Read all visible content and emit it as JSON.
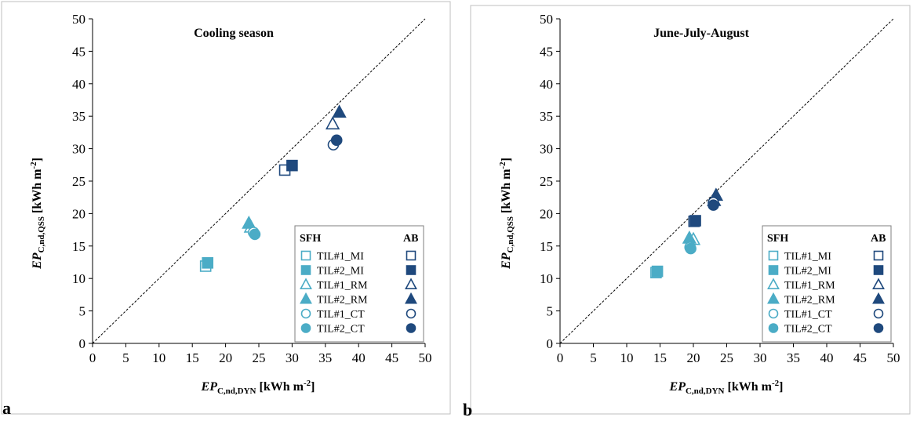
{
  "chart_data": [
    {
      "panel_label": "a",
      "type": "scatter",
      "title": "Cooling season",
      "xlabel": {
        "main": "EP",
        "sub": "C,nd,DYN",
        "unit": " [kWh m",
        "exp": "-2",
        "close": "]"
      },
      "ylabel": {
        "main": "EP",
        "sub": "C,nd,QSS",
        "unit": " [kWh m",
        "exp": "-2",
        "close": "]"
      },
      "xlim": [
        0,
        50
      ],
      "ylim": [
        0,
        50
      ],
      "xticks": [
        "0",
        "5",
        "10",
        "15",
        "20",
        "25",
        "30",
        "35",
        "40",
        "45",
        "50"
      ],
      "yticks": [
        "0",
        "5",
        "10",
        "15",
        "20",
        "25",
        "30",
        "35",
        "40",
        "45",
        "50"
      ],
      "grid": false,
      "reference_line": "y = x (dashed)",
      "legend_position": "bottom-right",
      "legend_headers": [
        "SFH",
        "AB"
      ],
      "series": [
        {
          "name": "TIL#1_MI",
          "group": "SFH",
          "marker": "square",
          "filled": false,
          "color": "#4BACC6",
          "x": 17.0,
          "y": 11.9
        },
        {
          "name": "TIL#2_MI",
          "group": "SFH",
          "marker": "square",
          "filled": true,
          "color": "#4BACC6",
          "x": 17.3,
          "y": 12.4
        },
        {
          "name": "TIL#1_RM",
          "group": "SFH",
          "marker": "triangle",
          "filled": false,
          "color": "#4BACC6",
          "x": 23.8,
          "y": 17.9
        },
        {
          "name": "TIL#2_RM",
          "group": "SFH",
          "marker": "triangle",
          "filled": true,
          "color": "#4BACC6",
          "x": 23.5,
          "y": 18.5
        },
        {
          "name": "TIL#1_CT",
          "group": "SFH",
          "marker": "circle",
          "filled": false,
          "color": "#4BACC6",
          "x": 24.2,
          "y": 17.1
        },
        {
          "name": "TIL#2_CT",
          "group": "SFH",
          "marker": "circle",
          "filled": true,
          "color": "#4BACC6",
          "x": 24.4,
          "y": 16.8
        },
        {
          "name": "TIL#1_MI",
          "group": "AB",
          "marker": "square",
          "filled": false,
          "color": "#1F497D",
          "x": 28.9,
          "y": 26.7
        },
        {
          "name": "TIL#2_MI",
          "group": "AB",
          "marker": "square",
          "filled": true,
          "color": "#1F497D",
          "x": 30.0,
          "y": 27.4
        },
        {
          "name": "TIL#1_RM",
          "group": "AB",
          "marker": "triangle",
          "filled": false,
          "color": "#1F497D",
          "x": 36.1,
          "y": 33.8
        },
        {
          "name": "TIL#2_RM",
          "group": "AB",
          "marker": "triangle",
          "filled": true,
          "color": "#1F497D",
          "x": 37.1,
          "y": 35.6
        },
        {
          "name": "TIL#1_CT",
          "group": "AB",
          "marker": "circle",
          "filled": false,
          "color": "#1F497D",
          "x": 36.2,
          "y": 30.6
        },
        {
          "name": "TIL#2_CT",
          "group": "AB",
          "marker": "circle",
          "filled": true,
          "color": "#1F497D",
          "x": 36.7,
          "y": 31.3
        }
      ]
    },
    {
      "panel_label": "b",
      "type": "scatter",
      "title": "June-July-August",
      "xlabel": {
        "main": "EP",
        "sub": "C,nd,DYN",
        "unit": " [kWh m",
        "exp": "-2",
        "close": "]"
      },
      "ylabel": {
        "main": "EP",
        "sub": "C,nd,QSS",
        "unit": " [kWh m",
        "exp": "-2",
        "close": "]"
      },
      "xlim": [
        0,
        50
      ],
      "ylim": [
        0,
        50
      ],
      "xticks": [
        "0",
        "5",
        "10",
        "15",
        "20",
        "25",
        "30",
        "35",
        "40",
        "45",
        "50"
      ],
      "yticks": [
        "0",
        "5",
        "10",
        "15",
        "20",
        "25",
        "30",
        "35",
        "40",
        "45",
        "50"
      ],
      "grid": false,
      "reference_line": "y = x (dashed)",
      "legend_position": "bottom-right",
      "legend_headers": [
        "SFH",
        "AB"
      ],
      "series": [
        {
          "name": "TIL#1_MI",
          "group": "SFH",
          "marker": "square",
          "filled": false,
          "color": "#4BACC6",
          "x": 14.4,
          "y": 10.9
        },
        {
          "name": "TIL#2_MI",
          "group": "SFH",
          "marker": "square",
          "filled": true,
          "color": "#4BACC6",
          "x": 14.6,
          "y": 11.1
        },
        {
          "name": "TIL#1_RM",
          "group": "SFH",
          "marker": "triangle",
          "filled": false,
          "color": "#4BACC6",
          "x": 20.0,
          "y": 16.0
        },
        {
          "name": "TIL#2_RM",
          "group": "SFH",
          "marker": "triangle",
          "filled": true,
          "color": "#4BACC6",
          "x": 19.4,
          "y": 16.2
        },
        {
          "name": "TIL#1_CT",
          "group": "SFH",
          "marker": "circle",
          "filled": false,
          "color": "#4BACC6",
          "x": 19.5,
          "y": 14.8
        },
        {
          "name": "TIL#2_CT",
          "group": "SFH",
          "marker": "circle",
          "filled": true,
          "color": "#4BACC6",
          "x": 19.6,
          "y": 14.6
        },
        {
          "name": "TIL#1_MI",
          "group": "AB",
          "marker": "square",
          "filled": false,
          "color": "#1F497D",
          "x": 20.1,
          "y": 18.8
        },
        {
          "name": "TIL#2_MI",
          "group": "AB",
          "marker": "square",
          "filled": true,
          "color": "#1F497D",
          "x": 20.3,
          "y": 18.9
        },
        {
          "name": "TIL#1_RM",
          "group": "AB",
          "marker": "triangle",
          "filled": false,
          "color": "#1F497D",
          "x": 23.1,
          "y": 22.0
        },
        {
          "name": "TIL#2_RM",
          "group": "AB",
          "marker": "triangle",
          "filled": true,
          "color": "#1F497D",
          "x": 23.4,
          "y": 22.8
        },
        {
          "name": "TIL#1_CT",
          "group": "AB",
          "marker": "circle",
          "filled": false,
          "color": "#1F497D",
          "x": 23.0,
          "y": 21.7
        },
        {
          "name": "TIL#2_CT",
          "group": "AB",
          "marker": "circle",
          "filled": true,
          "color": "#1F497D",
          "x": 23.0,
          "y": 21.3
        }
      ]
    }
  ],
  "legend": {
    "header_left": "SFH",
    "header_right": "AB",
    "entries": [
      {
        "label": "TIL#1_MI",
        "marker": "square",
        "filled": false
      },
      {
        "label": "TIL#2_MI",
        "marker": "square",
        "filled": true
      },
      {
        "label": "TIL#1_RM",
        "marker": "triangle",
        "filled": false
      },
      {
        "label": "TIL#2_RM",
        "marker": "triangle",
        "filled": true
      },
      {
        "label": "TIL#1_CT",
        "marker": "circle",
        "filled": false
      },
      {
        "label": "TIL#2_CT",
        "marker": "circle",
        "filled": true
      }
    ],
    "color_left": "#4BACC6",
    "color_right": "#1F497D"
  }
}
